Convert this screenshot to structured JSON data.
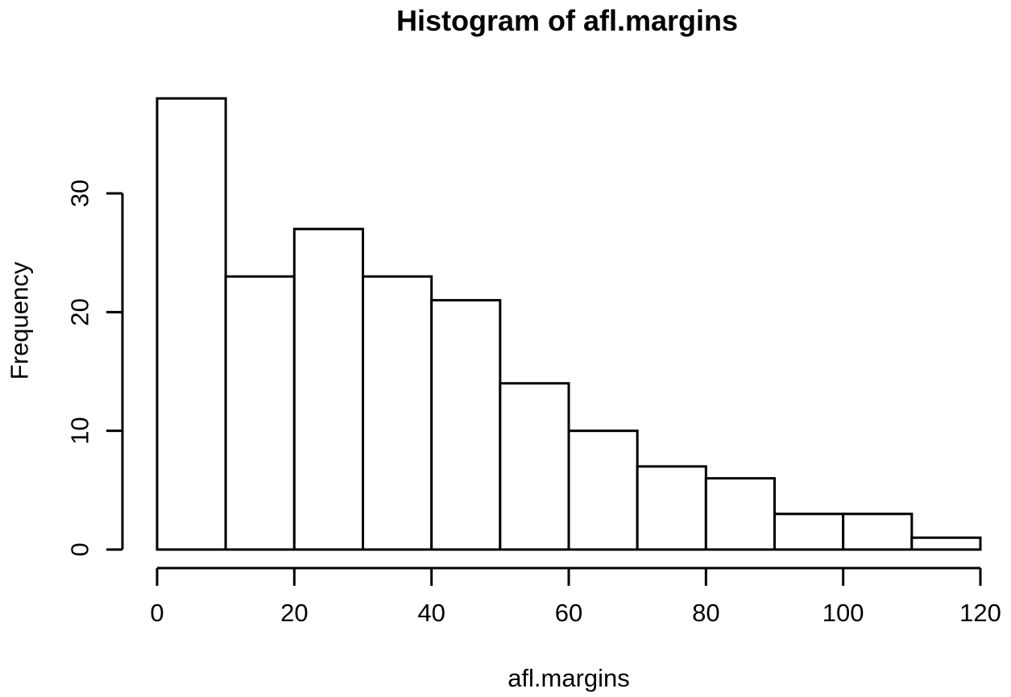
{
  "figure": {
    "background": "#ffffff"
  },
  "chart_data": {
    "type": "bar",
    "subtype": "histogram",
    "title": "Histogram of afl.margins",
    "xlabel": "afl.margins",
    "ylabel": "Frequency",
    "bin_width": 10,
    "bin_edges": [
      0,
      10,
      20,
      30,
      40,
      50,
      60,
      70,
      80,
      90,
      100,
      110,
      120
    ],
    "counts": [
      38,
      23,
      27,
      23,
      21,
      14,
      10,
      7,
      6,
      3,
      3,
      1
    ],
    "x_ticks": [
      "0",
      "20",
      "40",
      "60",
      "80",
      "100",
      "120"
    ],
    "x_tick_values": [
      0,
      20,
      40,
      60,
      80,
      100,
      120
    ],
    "y_ticks": [
      "0",
      "10",
      "20",
      "30"
    ],
    "y_tick_values": [
      0,
      10,
      20,
      30
    ],
    "xlim": [
      0,
      120
    ],
    "ylim": [
      0,
      30
    ],
    "grid": false,
    "legend_position": "none",
    "bar_fill": "#ffffff",
    "bar_stroke": "#000000",
    "axis_color": "#000000",
    "text_color": "#000000",
    "background": "#ffffff"
  }
}
